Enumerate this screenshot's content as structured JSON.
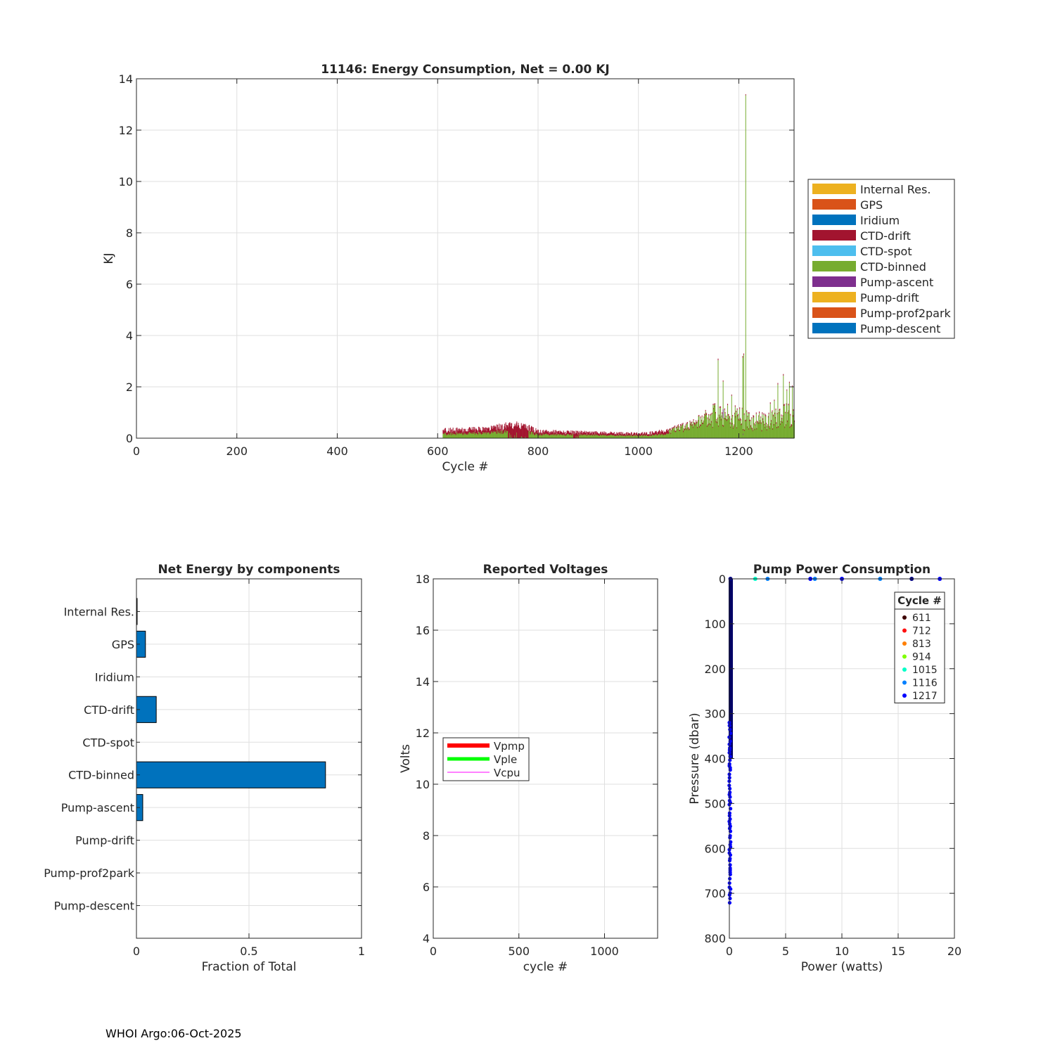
{
  "footer": "WHOI Argo:06-Oct-2025",
  "colors": {
    "axis": "#262626",
    "grid": "#dfdfdf",
    "c1": "#EDB120",
    "c2": "#D95319",
    "c3": "#0072BD",
    "c4": "#A2142F",
    "c5": "#4DBEEE",
    "c6": "#77AC30",
    "c7": "#7E2F8E"
  },
  "chart_data": [
    {
      "id": "energy",
      "type": "bar",
      "stacked": true,
      "title": "11146: Energy Consumption,  Net =   0.00 KJ",
      "xlabel": "Cycle #",
      "ylabel": "KJ",
      "xlim": [
        0,
        1310
      ],
      "ylim": [
        0,
        14
      ],
      "xticks": [
        0,
        200,
        400,
        600,
        800,
        1000,
        1200
      ],
      "yticks": [
        0,
        2,
        4,
        6,
        8,
        10,
        12,
        14
      ],
      "grid": true,
      "legend_position": "outside-right",
      "series": [
        {
          "name": "Internal Res.",
          "color": "#EDB120"
        },
        {
          "name": "GPS",
          "color": "#D95319"
        },
        {
          "name": "Iridium",
          "color": "#0072BD"
        },
        {
          "name": "CTD-drift",
          "color": "#A2142F"
        },
        {
          "name": "CTD-spot",
          "color": "#4DBEEE"
        },
        {
          "name": "CTD-binned",
          "color": "#77AC30"
        },
        {
          "name": "Pump-ascent",
          "color": "#7E2F8E"
        },
        {
          "name": "Pump-drift",
          "color": "#EDB120"
        },
        {
          "name": "Pump-prof2park",
          "color": "#D95319"
        },
        {
          "name": "Pump-descent",
          "color": "#0072BD"
        }
      ],
      "data_range_cycles": [
        610,
        1310
      ],
      "envelope": [
        [
          610,
          0.35
        ],
        [
          700,
          0.4
        ],
        [
          760,
          0.65
        ],
        [
          800,
          0.3
        ],
        [
          900,
          0.25
        ],
        [
          1000,
          0.2
        ],
        [
          1050,
          0.3
        ],
        [
          1100,
          0.6
        ],
        [
          1140,
          1.0
        ],
        [
          1160,
          1.2
        ],
        [
          1200,
          1.0
        ],
        [
          1250,
          0.8
        ],
        [
          1310,
          1.2
        ]
      ],
      "spikes": [
        [
          1213,
          13.4
        ],
        [
          1209,
          3.3
        ],
        [
          1207,
          3.2
        ],
        [
          1158,
          3.1
        ],
        [
          1168,
          2.25
        ],
        [
          1288,
          2.5
        ],
        [
          1300,
          2.2
        ],
        [
          1277,
          2.15
        ],
        [
          1306,
          2.05
        ],
        [
          1185,
          1.7
        ],
        [
          1270,
          1.5
        ],
        [
          1262,
          1.4
        ],
        [
          1295,
          1.9
        ]
      ],
      "drift_band": [
        [
          740,
          780,
          0.65
        ],
        [
          870,
          880,
          0.3
        ]
      ]
    },
    {
      "id": "net",
      "type": "bar",
      "orientation": "horizontal",
      "title": "Net Energy by components",
      "xlabel": "Fraction of Total",
      "xlim": [
        0,
        1
      ],
      "xticks": [
        0,
        0.5,
        1
      ],
      "xticklabels": [
        "0",
        "0.5",
        "1"
      ],
      "grid": true,
      "categories": [
        "Internal Res.",
        "GPS",
        "Iridium",
        "CTD-drift",
        "CTD-spot",
        "CTD-binned",
        "Pump-ascent",
        "Pump-drift",
        "Pump-prof2park",
        "Pump-descent"
      ],
      "values": [
        0.003,
        0.04,
        0.0,
        0.088,
        0.0,
        0.84,
        0.028,
        0.0,
        0.0,
        0.0
      ],
      "color": "#0072BD"
    },
    {
      "id": "volts",
      "type": "line",
      "title": "Reported Voltages",
      "xlabel": "cycle #",
      "ylabel": "Volts",
      "xlim": [
        0,
        1310
      ],
      "ylim": [
        4,
        18
      ],
      "xticks": [
        0,
        500,
        1000
      ],
      "yticks": [
        4,
        6,
        8,
        10,
        12,
        14,
        16,
        18
      ],
      "grid": true,
      "legend_position": "center-left",
      "series": [
        {
          "name": "Vpmp",
          "color": "#FF0000",
          "values": []
        },
        {
          "name": "Vple",
          "color": "#00FF00",
          "values": []
        },
        {
          "name": "Vcpu",
          "color": "#FF00FF",
          "values": []
        }
      ]
    },
    {
      "id": "pump",
      "type": "scatter",
      "title": "Pump Power Consumption",
      "xlabel": "Power (watts)",
      "ylabel": "Pressure (dbar)",
      "xlim": [
        0,
        20
      ],
      "ylim": [
        0,
        800
      ],
      "y_reversed": true,
      "xticks": [
        0,
        5,
        10,
        15,
        20
      ],
      "yticks": [
        0,
        100,
        200,
        300,
        400,
        500,
        600,
        700,
        800
      ],
      "grid": true,
      "legend_title": "Cycle #",
      "legend_position": "top-right",
      "series": [
        {
          "name": "611",
          "color": "#3d0000"
        },
        {
          "name": "712",
          "color": "#ff1010"
        },
        {
          "name": "813",
          "color": "#ff7f00"
        },
        {
          "name": "914",
          "color": "#7fff00"
        },
        {
          "name": "1015",
          "color": "#00ffc8"
        },
        {
          "name": "1116",
          "color": "#0080ff"
        },
        {
          "name": "1217",
          "color": "#0000ff"
        }
      ],
      "surface_points": [
        [
          0.1,
          0,
          "#000080"
        ],
        [
          2.3,
          0,
          "#00ffc8"
        ],
        [
          3.4,
          0,
          "#0080ff"
        ],
        [
          7.2,
          0,
          "#0000ff"
        ],
        [
          7.6,
          0,
          "#0080ff"
        ],
        [
          10.0,
          0,
          "#0000ff"
        ],
        [
          13.4,
          0,
          "#0080ff"
        ],
        [
          16.2,
          0,
          "#000080"
        ],
        [
          18.7,
          0,
          "#0000ff"
        ]
      ],
      "dense_column": {
        "power": 0.05,
        "pressure_max": 400,
        "color": "#000066"
      },
      "sparse_points": {
        "power": 0.05,
        "pressure_min": 320,
        "pressure_max": 725,
        "color": "#0000ff"
      }
    }
  ]
}
